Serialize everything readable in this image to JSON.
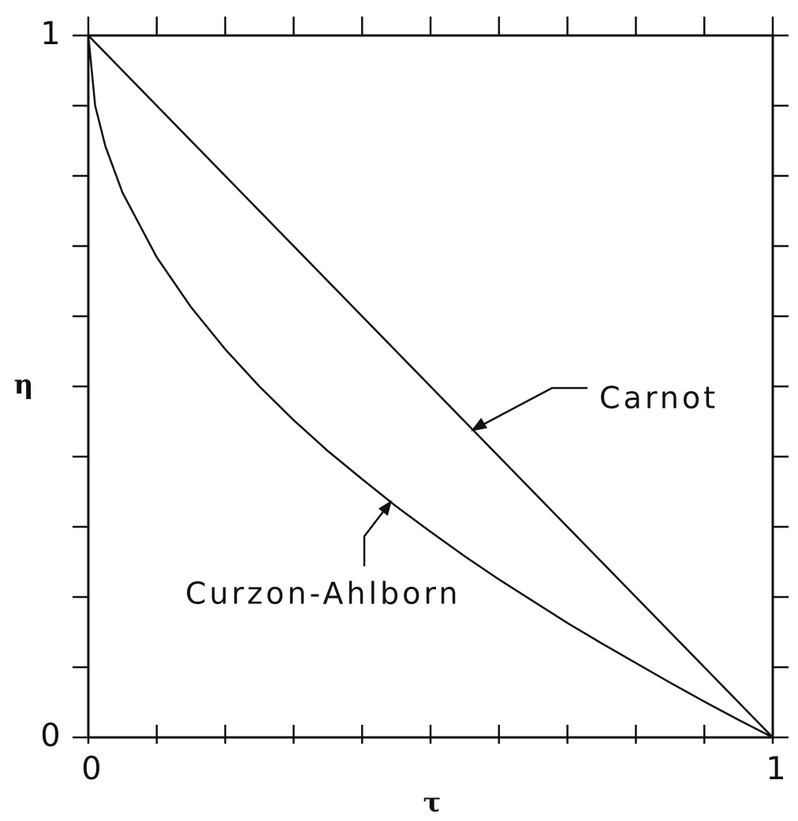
{
  "chart_data": {
    "type": "line",
    "xlabel": "τ",
    "ylabel": "η",
    "x": [
      0,
      0.01,
      0.025,
      0.05,
      0.1,
      0.15,
      0.2,
      0.25,
      0.3,
      0.35,
      0.4,
      0.45,
      0.5,
      0.55,
      0.6,
      0.65,
      0.7,
      0.75,
      0.8,
      0.85,
      0.9,
      0.95,
      1
    ],
    "series": [
      {
        "name": "Carnot",
        "color": "#000000",
        "values": [
          1,
          0.99,
          0.975,
          0.95,
          0.9,
          0.85,
          0.8,
          0.75,
          0.7,
          0.65,
          0.6,
          0.55,
          0.5,
          0.45,
          0.4,
          0.35,
          0.3,
          0.25,
          0.2,
          0.15,
          0.1,
          0.05,
          0
        ]
      },
      {
        "name": "Curzon-Ahlborn",
        "color": "#000000",
        "values": [
          1,
          0.9,
          0.842,
          0.776,
          0.684,
          0.613,
          0.553,
          0.5,
          0.452,
          0.408,
          0.368,
          0.329,
          0.293,
          0.258,
          0.225,
          0.194,
          0.163,
          0.134,
          0.106,
          0.078,
          0.051,
          0.025,
          0
        ]
      }
    ],
    "xlim": [
      0,
      1
    ],
    "ylim": [
      0,
      1
    ],
    "xticks": [
      0,
      1
    ],
    "yticks": [
      0,
      1
    ],
    "xminor_ticks": [
      0.1,
      0.2,
      0.3,
      0.4,
      0.5,
      0.6,
      0.7,
      0.8,
      0.9
    ],
    "yminor_ticks": [
      0.1,
      0.2,
      0.3,
      0.4,
      0.5,
      0.6,
      0.7,
      0.8,
      0.9
    ],
    "grid": false
  }
}
